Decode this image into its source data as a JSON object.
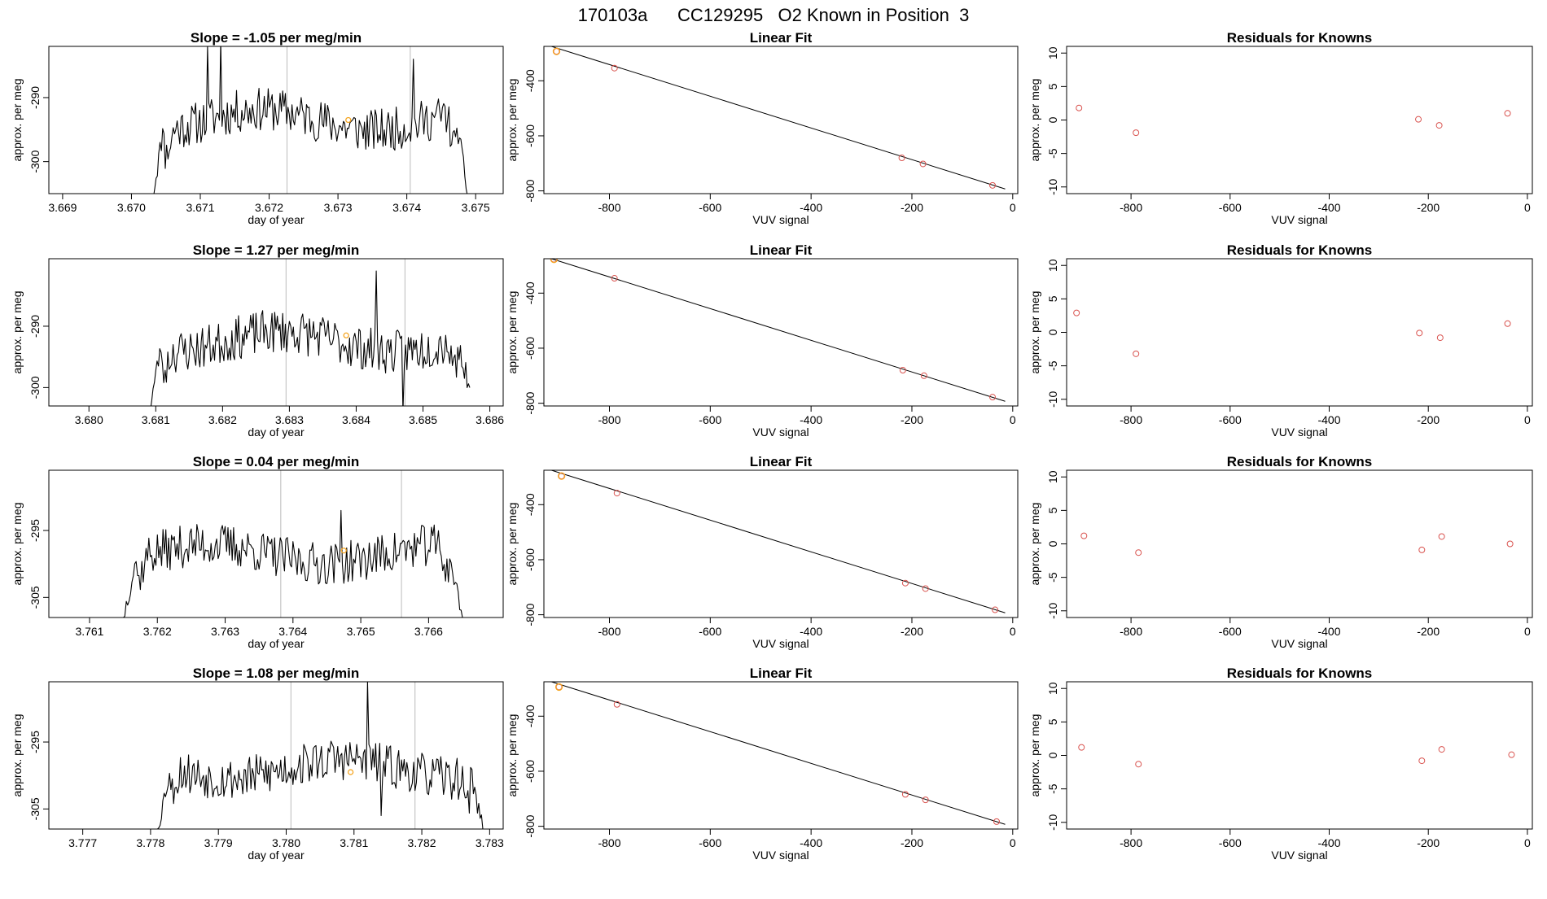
{
  "page_title": "170103a      CC129295   O2 Known in Position  3",
  "colors": {
    "trace": "#000000",
    "marker": "#f5a623",
    "point": "#d9534f",
    "fit": "#000000",
    "vline": "#bbbbbb"
  },
  "chart_data": [
    {
      "type": "line",
      "panel": "time-1",
      "title": "Slope =  -1.05  per meg/min",
      "xlabel": "day of year",
      "ylabel": "approx. per meg",
      "xlim": [
        3.6688,
        3.6754
      ],
      "ylim": [
        -305,
        -282
      ],
      "xticks": [
        3.669,
        3.67,
        3.671,
        3.672,
        3.673,
        3.674,
        3.675
      ],
      "xtick_labels": [
        "3.669",
        "3.670",
        "3.671",
        "3.672",
        "3.673",
        "3.674",
        "3.675"
      ],
      "yticks": [
        -300,
        -290
      ],
      "ytick_labels": [
        "-300",
        "-290"
      ],
      "vlines": [
        3.67226,
        3.67405
      ],
      "marker": {
        "x": 3.67315,
        "y": -293.5
      },
      "trace": {
        "x_start": 3.6703,
        "x_end": 3.6749,
        "edge_start": -306,
        "edge_end": -306,
        "mean": -293.5,
        "amp": 2.8,
        "noise": 3.4,
        "seed": 11,
        "spikes": [
          [
            3.6713,
            -281
          ],
          [
            3.6741,
            -284
          ],
          [
            3.6711,
            -282
          ]
        ]
      }
    },
    {
      "type": "scatter",
      "panel": "fit-1",
      "title": "Linear Fit",
      "xlabel": "VUV signal",
      "ylabel": "approx. per meg",
      "xlim": [
        -930,
        10
      ],
      "ylim": [
        -810,
        -275
      ],
      "xticks": [
        -800,
        -600,
        -400,
        -200,
        0
      ],
      "xtick_labels": [
        "-800",
        "-600",
        "-400",
        "-200",
        "0"
      ],
      "yticks": [
        -800,
        -600,
        -400
      ],
      "ytick_labels": [
        "-800",
        "-600",
        "-400"
      ],
      "fit_line": {
        "x1": -915,
        "y1": -275,
        "x2": -15,
        "y2": -793
      },
      "points": [
        {
          "x": -905,
          "y": -293,
          "highlight": true
        },
        {
          "x": -790,
          "y": -354
        },
        {
          "x": -220,
          "y": -680
        },
        {
          "x": -178,
          "y": -702
        },
        {
          "x": -40,
          "y": -780
        }
      ]
    },
    {
      "type": "scatter",
      "panel": "resid-1",
      "title": "Residuals for Knowns",
      "xlabel": "VUV signal",
      "ylabel": "approx. per meg",
      "xlim": [
        -930,
        10
      ],
      "ylim": [
        -11,
        11
      ],
      "xticks": [
        -800,
        -600,
        -400,
        -200,
        0
      ],
      "xtick_labels": [
        "-800",
        "-600",
        "-400",
        "-200",
        "0"
      ],
      "yticks": [
        -10,
        -5,
        0,
        5,
        10
      ],
      "ytick_labels": [
        "-10",
        "-5",
        "0",
        "5",
        "10"
      ],
      "points": [
        {
          "x": -905,
          "y": 1.8
        },
        {
          "x": -790,
          "y": -1.9
        },
        {
          "x": -220,
          "y": 0.1
        },
        {
          "x": -178,
          "y": -0.8
        },
        {
          "x": -40,
          "y": 1.0
        }
      ]
    },
    {
      "type": "line",
      "panel": "time-2",
      "title": "Slope =  1.27  per meg/min",
      "xlabel": "day of year",
      "ylabel": "approx. per meg",
      "xlim": [
        3.6794,
        3.6862
      ],
      "ylim": [
        -303,
        -279
      ],
      "xticks": [
        3.68,
        3.681,
        3.682,
        3.683,
        3.684,
        3.685,
        3.686
      ],
      "xtick_labels": [
        "3.680",
        "3.681",
        "3.682",
        "3.683",
        "3.684",
        "3.685",
        "3.686"
      ],
      "yticks": [
        -300,
        -290
      ],
      "ytick_labels": [
        "-300",
        "-290"
      ],
      "vlines": [
        3.68295,
        3.68473
      ],
      "marker": {
        "x": 3.68385,
        "y": -291.5
      },
      "trace": {
        "x_start": 3.6809,
        "x_end": 3.6857,
        "edge_start": -304,
        "edge_end": -300,
        "mean": -292.5,
        "amp": 2.8,
        "noise": 3.6,
        "seed": 23,
        "spikes": [
          [
            3.6843,
            -281
          ],
          [
            3.6847,
            -304
          ]
        ]
      }
    },
    {
      "type": "scatter",
      "panel": "fit-2",
      "title": "Linear Fit",
      "xlabel": "VUV signal",
      "ylabel": "approx. per meg",
      "xlim": [
        -930,
        10
      ],
      "ylim": [
        -810,
        -275
      ],
      "xticks": [
        -800,
        -600,
        -400,
        -200,
        0
      ],
      "xtick_labels": [
        "-800",
        "-600",
        "-400",
        "-200",
        "0"
      ],
      "yticks": [
        -800,
        -600,
        -400
      ],
      "ytick_labels": [
        "-800",
        "-600",
        "-400"
      ],
      "fit_line": {
        "x1": -915,
        "y1": -275,
        "x2": -15,
        "y2": -793
      },
      "points": [
        {
          "x": -910,
          "y": -277,
          "highlight": true
        },
        {
          "x": -790,
          "y": -346
        },
        {
          "x": -218,
          "y": -680
        },
        {
          "x": -176,
          "y": -700
        },
        {
          "x": -40,
          "y": -778
        }
      ]
    },
    {
      "type": "scatter",
      "panel": "resid-2",
      "title": "Residuals for Knowns",
      "xlabel": "VUV signal",
      "ylabel": "approx. per meg",
      "xlim": [
        -930,
        10
      ],
      "ylim": [
        -11,
        11
      ],
      "xticks": [
        -800,
        -600,
        -400,
        -200,
        0
      ],
      "xtick_labels": [
        "-800",
        "-600",
        "-400",
        "-200",
        "0"
      ],
      "yticks": [
        -10,
        -5,
        0,
        5,
        10
      ],
      "ytick_labels": [
        "-10",
        "-5",
        "0",
        "5",
        "10"
      ],
      "points": [
        {
          "x": -910,
          "y": 2.9
        },
        {
          "x": -790,
          "y": -3.2
        },
        {
          "x": -218,
          "y": -0.1
        },
        {
          "x": -176,
          "y": -0.8
        },
        {
          "x": -40,
          "y": 1.3
        }
      ]
    },
    {
      "type": "line",
      "panel": "time-3",
      "title": "Slope =  0.04  per meg/min",
      "xlabel": "day of year",
      "ylabel": "approx. per meg",
      "xlim": [
        3.7604,
        3.7671
      ],
      "ylim": [
        -308,
        -286
      ],
      "xticks": [
        3.761,
        3.762,
        3.763,
        3.764,
        3.765,
        3.766
      ],
      "xtick_labels": [
        "3.761",
        "3.762",
        "3.763",
        "3.764",
        "3.765",
        "3.766"
      ],
      "yticks": [
        -305,
        -295
      ],
      "ytick_labels": [
        "-305",
        "-295"
      ],
      "vlines": [
        3.76382,
        3.7656
      ],
      "marker": {
        "x": 3.76475,
        "y": -298
      },
      "trace": {
        "x_start": 3.7615,
        "x_end": 3.7665,
        "edge_start": -308,
        "edge_end": -308,
        "mean": -298.5,
        "amp": 2.4,
        "noise": 3.2,
        "seed": 37,
        "spikes": [
          [
            3.7647,
            -292
          ]
        ]
      }
    },
    {
      "type": "scatter",
      "panel": "fit-3",
      "title": "Linear Fit",
      "xlabel": "VUV signal",
      "ylabel": "approx. per meg",
      "xlim": [
        -930,
        10
      ],
      "ylim": [
        -810,
        -275
      ],
      "xticks": [
        -800,
        -600,
        -400,
        -200,
        0
      ],
      "xtick_labels": [
        "-800",
        "-600",
        "-400",
        "-200",
        "0"
      ],
      "yticks": [
        -800,
        -600,
        -400
      ],
      "ytick_labels": [
        "-800",
        "-600",
        "-400"
      ],
      "fit_line": {
        "x1": -915,
        "y1": -275,
        "x2": -15,
        "y2": -793
      },
      "points": [
        {
          "x": -895,
          "y": -296,
          "highlight": true
        },
        {
          "x": -785,
          "y": -358
        },
        {
          "x": -213,
          "y": -685
        },
        {
          "x": -173,
          "y": -705
        },
        {
          "x": -35,
          "y": -782
        }
      ]
    },
    {
      "type": "scatter",
      "panel": "resid-3",
      "title": "Residuals for Knowns",
      "xlabel": "VUV signal",
      "ylabel": "approx. per meg",
      "xlim": [
        -930,
        10
      ],
      "ylim": [
        -11,
        11
      ],
      "xticks": [
        -800,
        -600,
        -400,
        -200,
        0
      ],
      "xtick_labels": [
        "-800",
        "-600",
        "-400",
        "-200",
        "0"
      ],
      "yticks": [
        -10,
        -5,
        0,
        5,
        10
      ],
      "ytick_labels": [
        "-10",
        "-5",
        "0",
        "5",
        "10"
      ],
      "points": [
        {
          "x": -895,
          "y": 1.2
        },
        {
          "x": -785,
          "y": -1.3
        },
        {
          "x": -213,
          "y": -0.9
        },
        {
          "x": -173,
          "y": 1.1
        },
        {
          "x": -35,
          "y": 0.0
        }
      ]
    },
    {
      "type": "line",
      "panel": "time-4",
      "title": "Slope =  1.08  per meg/min",
      "xlabel": "day of year",
      "ylabel": "approx. per meg",
      "xlim": [
        3.7765,
        3.7832
      ],
      "ylim": [
        -308,
        -286
      ],
      "xticks": [
        3.777,
        3.778,
        3.779,
        3.78,
        3.781,
        3.782,
        3.783
      ],
      "xtick_labels": [
        "3.777",
        "3.778",
        "3.779",
        "3.780",
        "3.781",
        "3.782",
        "3.783"
      ],
      "yticks": [
        -305,
        -295
      ],
      "ytick_labels": [
        "-305",
        "-295"
      ],
      "vlines": [
        3.78007,
        3.7819
      ],
      "marker": {
        "x": 3.78095,
        "y": -299.5
      },
      "trace": {
        "x_start": 3.7781,
        "x_end": 3.7829,
        "edge_start": -308,
        "edge_end": -308,
        "mean": -299,
        "amp": 2.4,
        "noise": 3.2,
        "seed": 53,
        "spikes": [
          [
            3.7812,
            -286
          ],
          [
            3.7814,
            -306
          ]
        ]
      }
    },
    {
      "type": "scatter",
      "panel": "fit-4",
      "title": "Linear Fit",
      "xlabel": "VUV signal",
      "ylabel": "approx. per meg",
      "xlim": [
        -930,
        10
      ],
      "ylim": [
        -810,
        -275
      ],
      "xticks": [
        -800,
        -600,
        -400,
        -200,
        0
      ],
      "xtick_labels": [
        "-800",
        "-600",
        "-400",
        "-200",
        "0"
      ],
      "yticks": [
        -800,
        -600,
        -400
      ],
      "ytick_labels": [
        "-800",
        "-600",
        "-400"
      ],
      "fit_line": {
        "x1": -915,
        "y1": -275,
        "x2": -15,
        "y2": -793
      },
      "points": [
        {
          "x": -900,
          "y": -294,
          "highlight": true
        },
        {
          "x": -785,
          "y": -357
        },
        {
          "x": -213,
          "y": -684
        },
        {
          "x": -173,
          "y": -704
        },
        {
          "x": -32,
          "y": -783
        }
      ]
    },
    {
      "type": "scatter",
      "panel": "resid-4",
      "title": "Residuals for Knowns",
      "xlabel": "VUV signal",
      "ylabel": "approx. per meg",
      "xlim": [
        -930,
        10
      ],
      "ylim": [
        -11,
        11
      ],
      "xticks": [
        -800,
        -600,
        -400,
        -200,
        0
      ],
      "xtick_labels": [
        "-800",
        "-600",
        "-400",
        "-200",
        "0"
      ],
      "yticks": [
        -10,
        -5,
        0,
        5,
        10
      ],
      "ytick_labels": [
        "-10",
        "-5",
        "0",
        "5",
        "10"
      ],
      "points": [
        {
          "x": -900,
          "y": 1.2
        },
        {
          "x": -785,
          "y": -1.3
        },
        {
          "x": -213,
          "y": -0.8
        },
        {
          "x": -173,
          "y": 0.9
        },
        {
          "x": -32,
          "y": 0.1
        }
      ]
    }
  ]
}
